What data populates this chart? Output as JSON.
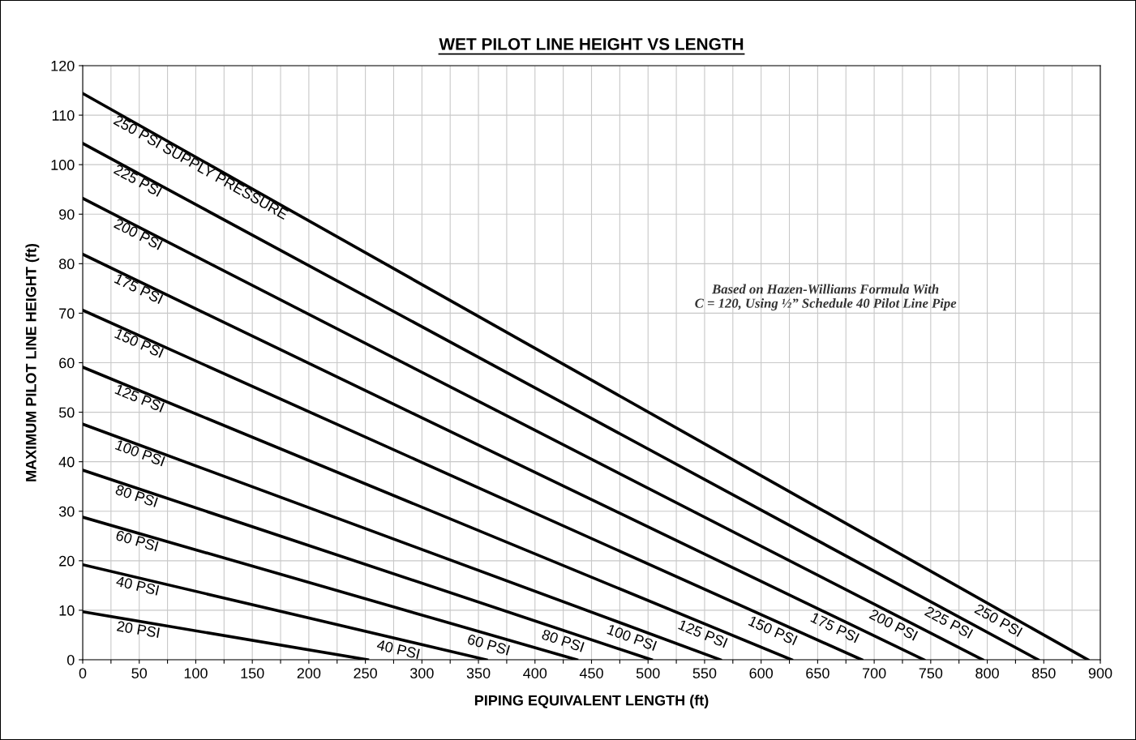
{
  "chart_data": {
    "type": "line",
    "title": "WET PILOT LINE HEIGHT VS LENGTH",
    "xlabel": "PIPING EQUIVALENT LENGTH (ft)",
    "ylabel": "MAXIMUM PILOT LINE HEIGHT (ft)",
    "series": [
      {
        "name": "250 PSI SUPPLY PRESSURE",
        "color": "#000000",
        "x": [
          0,
          889
        ],
        "values": [
          114.4,
          0
        ]
      },
      {
        "name": "225 PSI",
        "color": "#000000",
        "x": [
          0,
          845
        ],
        "values": [
          104.3,
          0
        ]
      },
      {
        "name": "200 PSI",
        "color": "#000000",
        "x": [
          0,
          796
        ],
        "values": [
          93.2,
          0
        ]
      },
      {
        "name": "175 PSI",
        "color": "#000000",
        "x": [
          0,
          744
        ],
        "values": [
          81.9,
          0
        ]
      },
      {
        "name": "150 PSI",
        "color": "#000000",
        "x": [
          0,
          689
        ],
        "values": [
          70.6,
          0
        ]
      },
      {
        "name": "125 PSI",
        "color": "#000000",
        "x": [
          0,
          627
        ],
        "values": [
          59.1,
          0
        ]
      },
      {
        "name": "100 PSI",
        "color": "#000000",
        "x": [
          0,
          564
        ],
        "values": [
          47.6,
          0
        ]
      },
      {
        "name": "80 PSI",
        "color": "#000000",
        "x": [
          0,
          503
        ],
        "values": [
          38.3,
          0
        ]
      },
      {
        "name": "60 PSI",
        "color": "#000000",
        "x": [
          0,
          437
        ],
        "values": [
          28.8,
          0
        ]
      },
      {
        "name": "40 PSI",
        "color": "#000000",
        "x": [
          0,
          357
        ],
        "values": [
          19.2,
          0
        ]
      },
      {
        "name": "20 PSI",
        "color": "#000000",
        "x": [
          0,
          252
        ],
        "values": [
          9.7,
          0
        ]
      }
    ],
    "annotations": [
      "40 PSI",
      "60 PSI",
      "80 PSI",
      "100 PSI",
      "125 PSI",
      "150 PSI",
      "175 PSI",
      "200 PSI",
      "225 PSI",
      "250 PSI",
      "Based on Hazen-Williams Formula With\nC = 120, Using ½” Schedule 40 Pilot Line Pipe"
    ],
    "xlim": [
      0,
      900
    ],
    "ylim": [
      0,
      120
    ],
    "xticks": [
      0,
      {
        "value": 25,
        "label": null
      },
      50,
      {
        "value": 75,
        "label": null
      },
      100,
      {
        "value": 125,
        "label": null
      },
      150,
      {
        "value": 175,
        "label": null
      },
      200,
      {
        "value": 225,
        "label": null
      },
      250,
      {
        "value": 275,
        "label": null
      },
      300,
      {
        "value": 325,
        "label": null
      },
      350,
      {
        "value": 375,
        "label": null
      },
      400,
      {
        "value": 425,
        "label": null
      },
      450,
      {
        "value": 475,
        "label": null
      },
      500,
      {
        "value": 525,
        "label": null
      },
      550,
      {
        "value": 575,
        "label": null
      },
      600,
      {
        "value": 625,
        "label": null
      },
      650,
      {
        "value": 675,
        "label": null
      },
      700,
      {
        "value": 725,
        "label": null
      },
      750,
      {
        "value": 775,
        "label": null
      },
      800,
      {
        "value": 825,
        "label": null
      },
      850,
      {
        "value": 875,
        "label": null
      },
      900
    ],
    "yticks": [
      0,
      10,
      20,
      30,
      40,
      50,
      60,
      70,
      80,
      90,
      100,
      110,
      120
    ],
    "grid": true,
    "legend": false,
    "marker": "none",
    "line_style": "solid"
  }
}
